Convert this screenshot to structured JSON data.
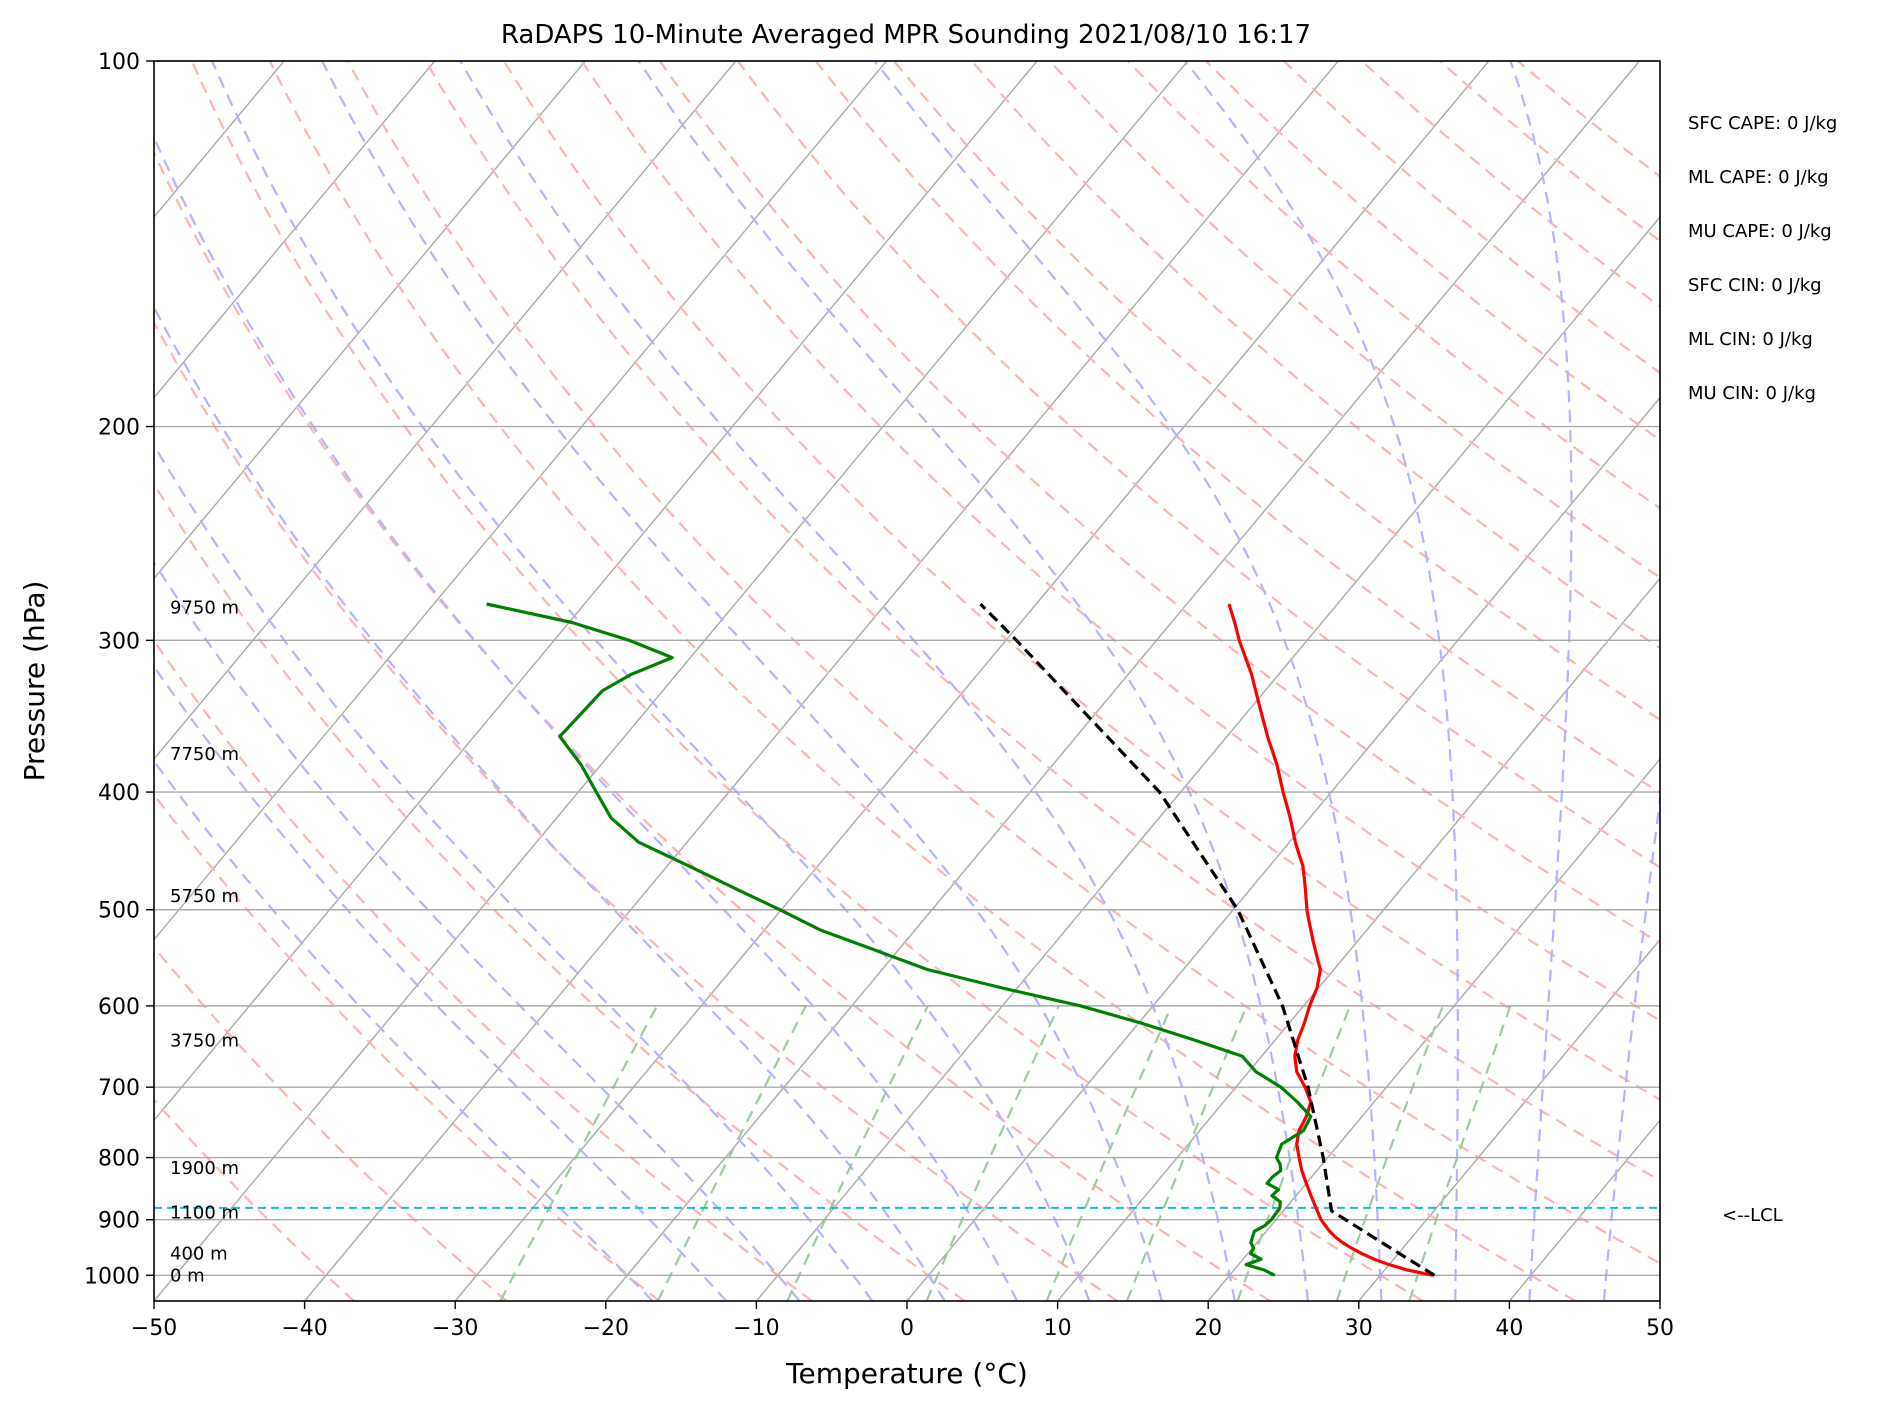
{
  "chart_data": {
    "type": "line",
    "subtype": "skew-T log-P sounding",
    "title": "RaDAPS 10-Minute Averaged MPR Sounding 2021/08/10 16:17",
    "xlabel": "Temperature (°C)",
    "ylabel": "Pressure (hPa)",
    "xlim": [
      -50,
      50
    ],
    "ylim": [
      1050,
      100
    ],
    "y_scale": "log",
    "grid": true,
    "x_ticks": [
      -50,
      -40,
      -30,
      -20,
      -10,
      0,
      10,
      20,
      30,
      40,
      50
    ],
    "x_tick_labels": [
      "−50",
      "−40",
      "−30",
      "−20",
      "−10",
      "0",
      "10",
      "20",
      "30",
      "40",
      "50"
    ],
    "y_ticks": [
      1000,
      900,
      800,
      700,
      600,
      500,
      400,
      300,
      200,
      100
    ],
    "y_tick_labels": [
      "1000",
      "900",
      "800",
      "700",
      "600",
      "500",
      "400",
      "300",
      "200",
      "100"
    ],
    "height_labels": [
      {
        "text": "9750 m",
        "p": 282
      },
      {
        "text": "7750 m",
        "p": 372
      },
      {
        "text": "5750 m",
        "p": 487
      },
      {
        "text": "3750 m",
        "p": 641
      },
      {
        "text": "1900 m",
        "p": 816
      },
      {
        "text": "1100 m",
        "p": 888
      },
      {
        "text": "400 m",
        "p": 960
      },
      {
        "text": "0 m",
        "p": 1000
      }
    ],
    "series": [
      {
        "role": "temperature",
        "color": "#ff0000",
        "p": [
          1000,
          990,
          980,
          970,
          960,
          950,
          940,
          930,
          920,
          910,
          900,
          880,
          860,
          840,
          820,
          800,
          780,
          760,
          740,
          720,
          700,
          680,
          660,
          640,
          620,
          600,
          580,
          560,
          550,
          530,
          510,
          500,
          480,
          460,
          450,
          440,
          420,
          400,
          380,
          360,
          340,
          320,
          300,
          290,
          280
        ],
        "values": [
          33.5,
          31.5,
          30.0,
          28.7,
          27.6,
          26.6,
          25.7,
          24.9,
          24.2,
          23.6,
          23.0,
          22.0,
          21.0,
          20.0,
          19.0,
          18.1,
          17.2,
          16.6,
          16.3,
          15.8,
          14.6,
          13.2,
          12.2,
          11.5,
          11.0,
          10.4,
          9.9,
          9.1,
          8.4,
          7.0,
          5.6,
          4.9,
          3.6,
          2.2,
          1.3,
          0.4,
          -1.3,
          -3.2,
          -5.1,
          -7.3,
          -9.5,
          -11.8,
          -14.5,
          -15.8,
          -17.2
        ]
      },
      {
        "role": "dewpoint",
        "color": "#008000",
        "p": [
          1000,
          990,
          980,
          970,
          960,
          950,
          940,
          930,
          920,
          910,
          900,
          880,
          870,
          860,
          850,
          840,
          830,
          820,
          810,
          800,
          780,
          760,
          740,
          720,
          700,
          680,
          660,
          640,
          620,
          600,
          580,
          560,
          540,
          520,
          500,
          480,
          460,
          440,
          420,
          400,
          380,
          360,
          340,
          330,
          320,
          310,
          300,
          290,
          280
        ],
        "values": [
          23.0,
          22.0,
          20.5,
          21.2,
          20.2,
          20.1,
          19.6,
          19.4,
          19.2,
          19.6,
          19.7,
          19.6,
          19.3,
          18.4,
          18.5,
          17.4,
          17.4,
          17.6,
          17.2,
          16.6,
          16.2,
          16.9,
          16.6,
          14.9,
          13.0,
          10.5,
          8.7,
          4.6,
          0.2,
          -4.8,
          -11.0,
          -17.0,
          -21.5,
          -26.2,
          -30.1,
          -34.3,
          -38.6,
          -43.2,
          -46.4,
          -48.8,
          -51.3,
          -54.3,
          -54.1,
          -54.0,
          -53.0,
          -51.2,
          -55.0,
          -59.8,
          -66.5
        ]
      },
      {
        "role": "parcel",
        "color": "#000000",
        "dashed": true,
        "p": [
          1000,
          940,
          885,
          800,
          700,
          600,
          500,
          400,
          300,
          280
        ],
        "values": [
          33.6,
          28.3,
          23.2,
          19.7,
          14.8,
          8.6,
          0.3,
          -11.4,
          -29.3,
          -33.7
        ]
      }
    ],
    "lcl_pressure": 880,
    "lcl_label": "<--LCL",
    "stats": [
      "SFC CAPE: 0 J/kg",
      "ML CAPE: 0 J/kg",
      "MU CAPE: 0 J/kg",
      "SFC CIN: 0 J/kg",
      "ML CIN: 0 J/kg",
      "MU CIN: 0 J/kg"
    ],
    "background_line_colors": {
      "isotherm": "#a9a9a9",
      "dry_adiabat": "#ffb3b3",
      "moist_adiabat": "#b3b3ff",
      "mixing_ratio": "#9ccc9c",
      "lcl_line": "#17becf"
    }
  }
}
